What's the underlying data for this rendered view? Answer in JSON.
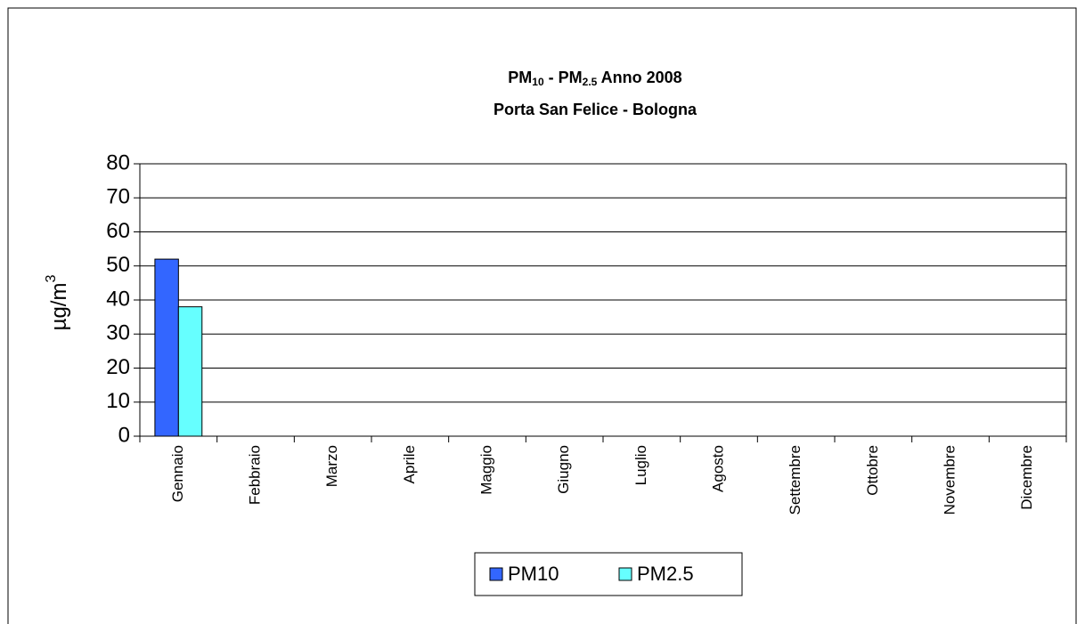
{
  "chart_data": {
    "type": "bar",
    "title": [
      "PM",
      "10",
      " - PM",
      "2.5",
      " Anno 2008"
    ],
    "subtitle": "Porta San Felice - Bologna",
    "y_label": [
      "µg/m",
      "3"
    ],
    "categories": [
      "Gennaio",
      "Febbraio",
      "Marzo",
      "Aprile",
      "Maggio",
      "Giugno",
      "Luglio",
      "Agosto",
      "Settembre",
      "Ottobre",
      "Novembre",
      "Dicembre"
    ],
    "series": [
      {
        "name": "PM10",
        "color": "#3366ff",
        "values": [
          52,
          null,
          null,
          null,
          null,
          null,
          null,
          null,
          null,
          null,
          null,
          null
        ]
      },
      {
        "name": "PM2.5",
        "color": "#66ffff",
        "values": [
          38,
          null,
          null,
          null,
          null,
          null,
          null,
          null,
          null,
          null,
          null,
          null
        ]
      }
    ],
    "ylim": [
      0,
      80
    ],
    "yticks": [
      0,
      10,
      20,
      30,
      40,
      50,
      60,
      70,
      80
    ],
    "grid": true,
    "legend": "bottom"
  }
}
